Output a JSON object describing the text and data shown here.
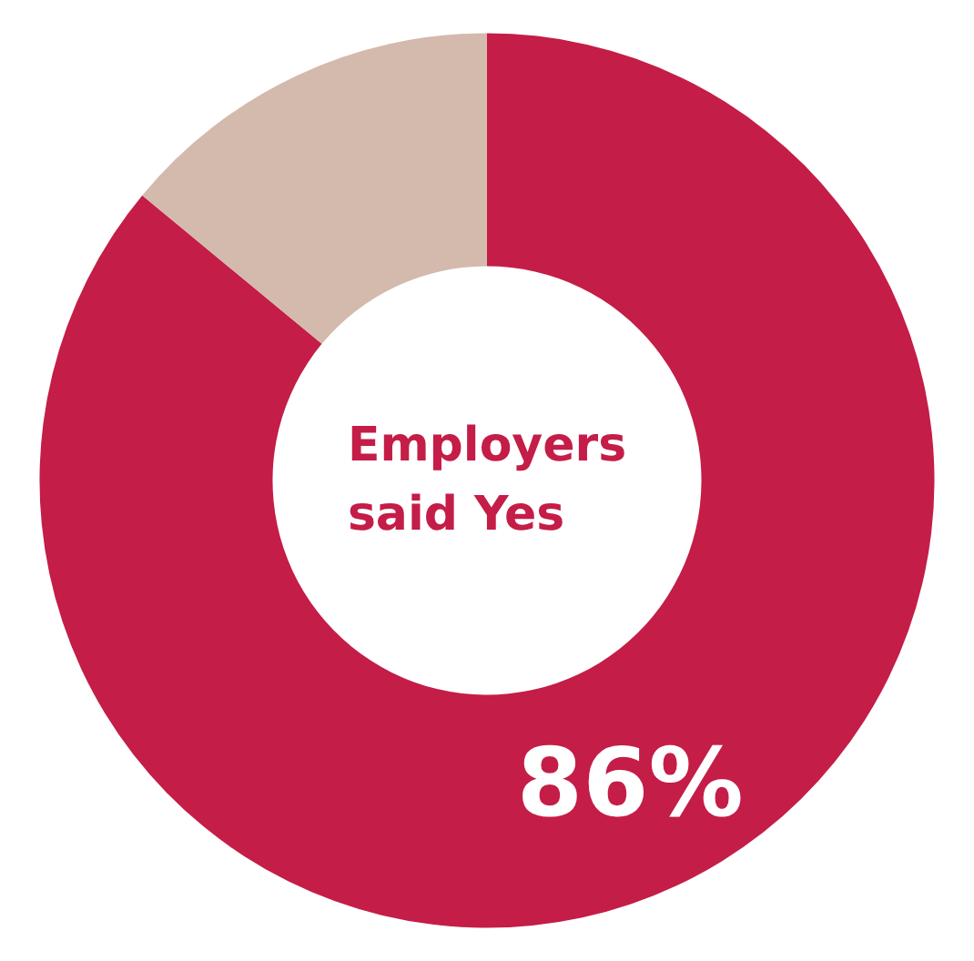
{
  "chart_data": {
    "type": "donut",
    "title": "Employers\nsaid Yes",
    "categories": [
      null,
      null
    ],
    "values": [
      86,
      14
    ],
    "colors": [
      "#c41d47",
      "#d4b9ad"
    ],
    "value_labels": [
      "86%",
      null
    ]
  }
}
